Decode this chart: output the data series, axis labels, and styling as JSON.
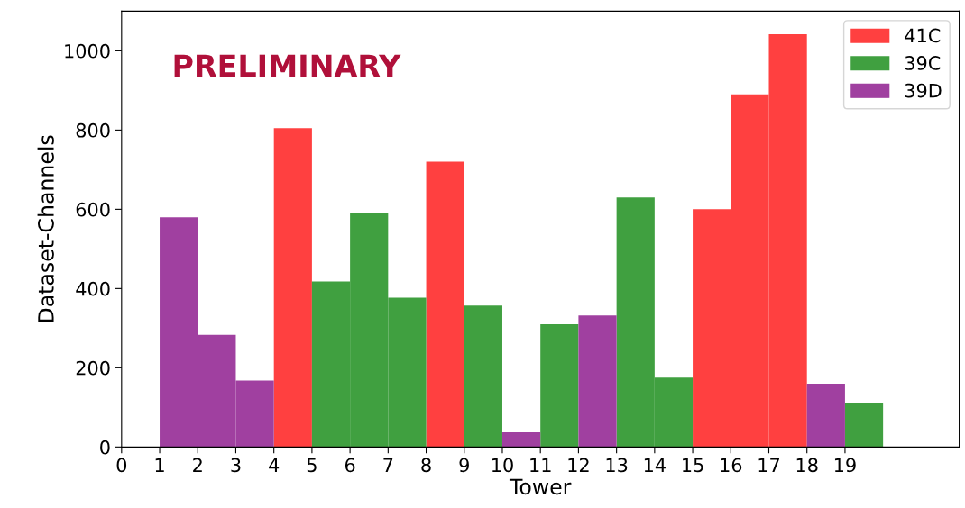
{
  "chart_data": {
    "type": "bar",
    "xlabel": "Tower",
    "ylabel": "Dataset-Channels",
    "annotations": [
      "PRELIMINARY"
    ],
    "series": [
      {
        "name": "41C",
        "color": "#ff4040",
        "x": [
          4,
          8,
          15,
          16,
          17
        ],
        "values": [
          805,
          720,
          600,
          890,
          1042
        ]
      },
      {
        "name": "39C",
        "color": "#40a040",
        "x": [
          5,
          6,
          7,
          9,
          11,
          13,
          14,
          19
        ],
        "values": [
          418,
          590,
          377,
          357,
          310,
          630,
          175,
          112
        ]
      },
      {
        "name": "39D",
        "color": "#a040a0",
        "x": [
          1,
          2,
          3,
          10,
          12,
          18
        ],
        "values": [
          580,
          283,
          168,
          37,
          332,
          160
        ]
      }
    ],
    "xlim": [
      0,
      22
    ],
    "xticks": [
      0,
      1,
      2,
      3,
      4,
      5,
      6,
      7,
      8,
      9,
      10,
      11,
      12,
      13,
      14,
      15,
      16,
      17,
      18,
      19
    ],
    "ylim": [
      0,
      1100
    ],
    "yticks": [
      0,
      200,
      400,
      600,
      800,
      1000
    ],
    "grid": false,
    "legend": "top right"
  }
}
